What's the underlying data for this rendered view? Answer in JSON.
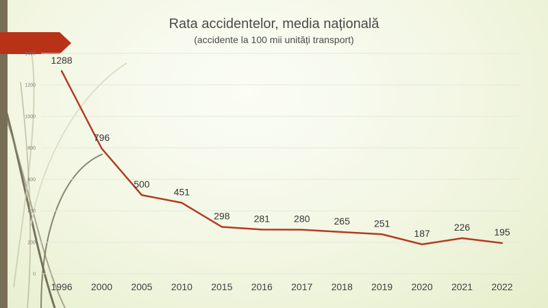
{
  "title": "Rata accidentelor, media națională",
  "subtitle": "(accidente la 100 mii unități transport)",
  "colors": {
    "line": "#b33a21",
    "arrow": "#b83218",
    "left_bar": "#776e55",
    "grid": "#e4e8d8"
  },
  "chart_data": {
    "type": "line",
    "title": "Rata accidentelor, media națională",
    "subtitle": "(accidente la 100 mii unități transport)",
    "categories": [
      "1996",
      "2000",
      "2005",
      "2010",
      "2015",
      "2016",
      "2017",
      "2018",
      "2019",
      "2020",
      "2021",
      "2022"
    ],
    "values": [
      1288,
      796,
      500,
      451,
      298,
      281,
      280,
      265,
      251,
      187,
      226,
      195
    ],
    "ylim": [
      0,
      1400
    ],
    "yticks": [
      0,
      200,
      400,
      600,
      800,
      1000,
      1200,
      1400
    ],
    "grid": true,
    "data_labels": true
  }
}
